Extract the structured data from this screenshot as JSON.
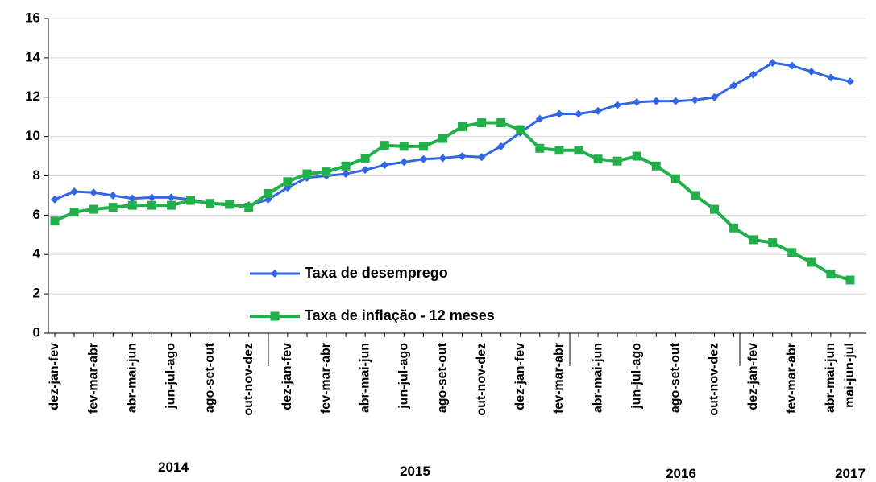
{
  "chart_data": {
    "type": "line",
    "categories": [
      "dez-jan-fev",
      null,
      "fev-mar-abr",
      null,
      "abr-mai-jun",
      null,
      "jun-jul-ago",
      null,
      "ago-set-out",
      null,
      "out-nov-dez",
      null,
      "dez-jan-fev",
      null,
      "fev-mar-abr",
      null,
      "abr-mai-jun",
      null,
      "jun-jul-ago",
      null,
      "ago-set-out",
      null,
      "out-nov-dez",
      null,
      "dez-jan-fev",
      null,
      "fev-mar-abr",
      null,
      "abr-mai-jun",
      null,
      "jun-jul-ago",
      null,
      "ago-set-out",
      null,
      "out-nov-dez",
      null,
      "dez-jan-fev",
      null,
      "fev-mar-abr",
      null,
      "abr-mai-jun",
      "mai-jun-jul"
    ],
    "year_labels": [
      "2014",
      "2015",
      "2016",
      "2017"
    ],
    "series": [
      {
        "name": "Taxa de desemprego",
        "color": "#3366e6",
        "marker": "diamond",
        "values": [
          6.8,
          7.2,
          7.15,
          7.0,
          6.85,
          6.9,
          6.9,
          6.8,
          6.6,
          6.5,
          6.5,
          6.8,
          7.4,
          7.9,
          8.0,
          8.1,
          8.3,
          8.55,
          8.7,
          8.85,
          8.9,
          9.0,
          8.95,
          9.5,
          10.2,
          10.9,
          11.15,
          11.15,
          11.3,
          11.6,
          11.75,
          11.8,
          11.8,
          11.85,
          12.0,
          12.6,
          13.15,
          13.75,
          13.6,
          13.3,
          13.0,
          12.8
        ]
      },
      {
        "name": "Taxa de inflação - 12 meses",
        "color": "#22b04b",
        "marker": "square",
        "values": [
          5.7,
          6.15,
          6.3,
          6.4,
          6.5,
          6.5,
          6.5,
          6.75,
          6.6,
          6.55,
          6.4,
          7.1,
          7.7,
          8.1,
          8.2,
          8.5,
          8.9,
          9.55,
          9.5,
          9.5,
          9.9,
          10.5,
          10.7,
          10.7,
          10.35,
          9.4,
          9.3,
          9.3,
          8.85,
          8.75,
          9.0,
          8.5,
          7.85,
          7.0,
          6.3,
          5.35,
          4.75,
          4.6,
          4.1,
          3.6,
          3.0,
          2.7
        ]
      }
    ],
    "ylim": [
      0,
      16
    ],
    "yticks": [
      0,
      2,
      4,
      6,
      8,
      10,
      12,
      14,
      16
    ],
    "grid": true
  }
}
